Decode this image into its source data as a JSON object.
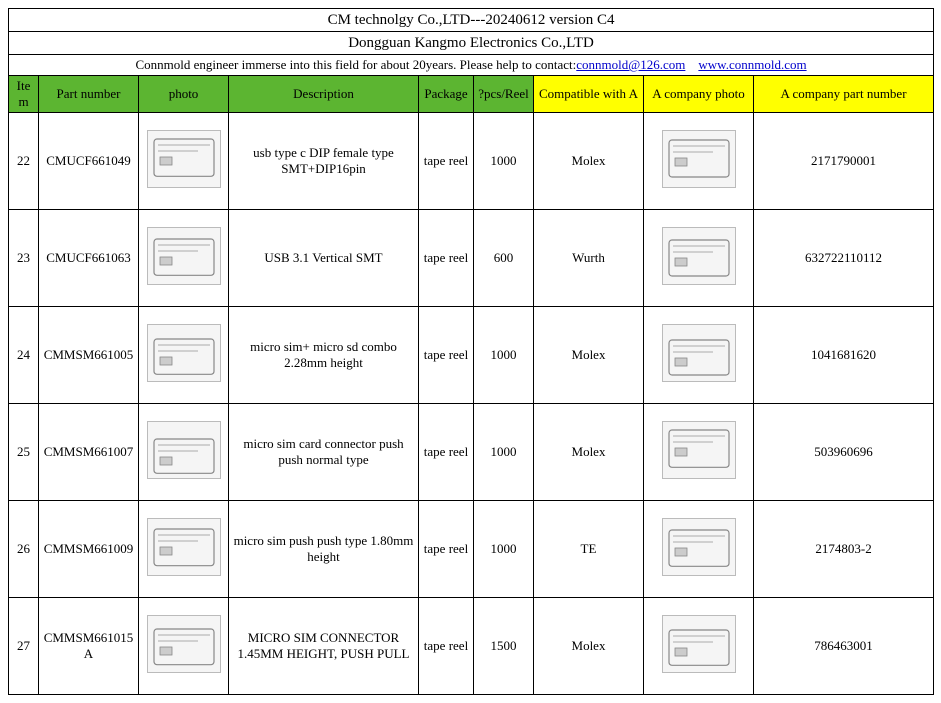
{
  "header": {
    "title": "CM technolgy Co.,LTD---20240612  version C4",
    "subtitle": "Dongguan Kangmo Electronics Co.,LTD",
    "contact_prefix": "Connmold engineer immerse into this field for about 20years. Please help to contact:",
    "contact_email": "connmold@126.com",
    "contact_site": "www.connmold.com"
  },
  "columns": {
    "item": "Item",
    "part": "Part number",
    "photo": "photo",
    "desc": "Description",
    "pkg": "Package",
    "pcs": "?pcs/Reel",
    "compat": "Compatible with A",
    "aphoto": "A company photo",
    "apart": "A company part number"
  },
  "rows": [
    {
      "item": "22",
      "part": "CMUCF661049",
      "desc": "usb type c DIP female type SMT+DIP16pin",
      "pkg": "tape reel",
      "pcs": "1000",
      "compat": "Molex",
      "apart": "2171790001"
    },
    {
      "item": "23",
      "part": "CMUCF661063",
      "desc": "USB 3.1 Vertical SMT",
      "pkg": "tape reel",
      "pcs": "600",
      "compat": "Wurth",
      "apart": "632722110112"
    },
    {
      "item": "24",
      "part": "CMMSM661005",
      "desc": "micro sim+ micro sd combo 2.28mm height",
      "pkg": "tape reel",
      "pcs": "1000",
      "compat": "Molex",
      "apart": "1041681620"
    },
    {
      "item": "25",
      "part": "CMMSM661007",
      "desc": "micro sim card connector push push normal type",
      "pkg": "tape reel",
      "pcs": "1000",
      "compat": "Molex",
      "apart": "503960696"
    },
    {
      "item": "26",
      "part": "CMMSM661009",
      "desc": "micro sim push push type 1.80mm height",
      "pkg": "tape reel",
      "pcs": "1000",
      "compat": "TE",
      "apart": "2174803-2"
    },
    {
      "item": "27",
      "part": "CMMSM661015A",
      "desc": "MICRO SIM CONNECTOR 1.45MM HEIGHT, PUSH PULL",
      "pkg": "tape reel",
      "pcs": "1500",
      "compat": "Molex",
      "apart": "786463001"
    }
  ],
  "style": {
    "green": "#5cb531",
    "yellow": "#ffff00",
    "border": "#000000",
    "bg": "#ffffff",
    "font": "Times New Roman"
  }
}
